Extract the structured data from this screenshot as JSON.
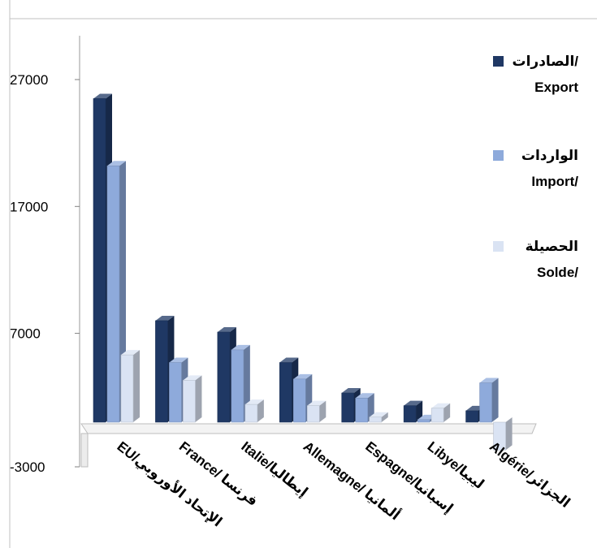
{
  "chart_data": {
    "type": "bar",
    "categories": [
      "EU/الإتحاد الأوروبي",
      "France/ فرنسا",
      "Italie/إيطاليا",
      "Allemagne/ ألمانيا",
      "Espagne/إسبانيا",
      "Libye/ليبيا",
      "Algérie/الجزائر"
    ],
    "series": [
      {
        "name": "الصادرات/ Export",
        "color": "#1f3864",
        "values": [
          25500,
          8000,
          7100,
          4700,
          2300,
          1300,
          900
        ]
      },
      {
        "name": "الواردات Import/",
        "color": "#8eaadb",
        "values": [
          20200,
          4700,
          5700,
          3400,
          1900,
          200,
          3100
        ]
      },
      {
        "name": "الحصيلة Solde/",
        "color": "#dae3f3",
        "values": [
          5300,
          3300,
          1400,
          1300,
          400,
          1100,
          -2200
        ]
      }
    ],
    "yticks": [
      27000,
      17000,
      7000,
      -3000
    ],
    "ylim": [
      -3000,
      27000
    ],
    "legend_position": "right",
    "grid": false,
    "style": "3d-clustered-column"
  }
}
